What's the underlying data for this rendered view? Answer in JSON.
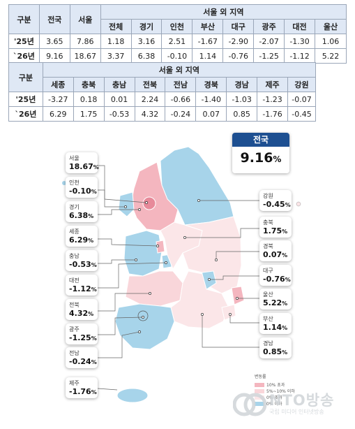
{
  "table1": {
    "header_gubun": "구분",
    "header_national": "전국",
    "header_seoul": "서울",
    "header_outside": "서울 외 지역",
    "subheaders": [
      "전체",
      "경기",
      "인천",
      "부산",
      "대구",
      "광주",
      "대전",
      "울산"
    ],
    "rows": [
      {
        "label": "'25년",
        "values": [
          "3.65",
          "7.86",
          "1.18",
          "3.16",
          "2.51",
          "-1.67",
          "-2.90",
          "-2.07",
          "-1.30",
          "1.06"
        ]
      },
      {
        "label": "`26년",
        "values": [
          "9.16",
          "18.67",
          "3.37",
          "6.38",
          "-0.10",
          "1.14",
          "-0.76",
          "-1.25",
          "-1.12",
          "5.22"
        ]
      }
    ]
  },
  "table2": {
    "header_gubun": "구분",
    "header_outside": "서울 외 지역",
    "subheaders": [
      "세종",
      "충북",
      "충남",
      "전북",
      "전남",
      "경북",
      "경남",
      "제주",
      "강원"
    ],
    "rows": [
      {
        "label": "'25년",
        "values": [
          "-3.27",
          "0.18",
          "0.01",
          "2.24",
          "-0.66",
          "-1.40",
          "-1.03",
          "-1.23",
          "-0.07"
        ]
      },
      {
        "label": "`26년",
        "values": [
          "6.29",
          "1.75",
          "-0.53",
          "4.32",
          "-0.24",
          "0.07",
          "0.85",
          "-1.76",
          "-0.45"
        ]
      }
    ]
  },
  "national": {
    "label": "전국",
    "value": "9.16",
    "unit": "%"
  },
  "chart_data": {
    "type": "table",
    "series": [
      {
        "name": "'25년",
        "values": {
          "전국": 3.65,
          "서울": 7.86,
          "전체": 1.18,
          "경기": 3.16,
          "인천": 2.51,
          "부산": -1.67,
          "대구": -2.9,
          "광주": -2.07,
          "대전": -1.3,
          "울산": 1.06,
          "세종": -3.27,
          "충북": 0.18,
          "충남": 0.01,
          "전북": 2.24,
          "전남": -0.66,
          "경북": -1.4,
          "경남": -1.03,
          "제주": -1.23,
          "강원": -0.07
        }
      },
      {
        "name": "`26년",
        "values": {
          "전국": 9.16,
          "서울": 18.67,
          "전체": 3.37,
          "경기": 6.38,
          "인천": -0.1,
          "부산": 1.14,
          "대구": -0.76,
          "광주": -1.25,
          "대전": -1.12,
          "울산": 5.22,
          "세종": 6.29,
          "충북": 1.75,
          "충남": -0.53,
          "전북": 4.32,
          "전남": -0.24,
          "경북": 0.07,
          "경남": 0.85,
          "제주": -1.76,
          "강원": -0.45
        }
      }
    ]
  },
  "map_labels": [
    {
      "name": "서울",
      "value": "18.67",
      "unit": "%"
    },
    {
      "name": "인천",
      "value": "-0.10",
      "unit": "%"
    },
    {
      "name": "경기",
      "value": "6.38",
      "unit": "%"
    },
    {
      "name": "세종",
      "value": "6.29",
      "unit": "%"
    },
    {
      "name": "충남",
      "value": "-0.53",
      "unit": "%"
    },
    {
      "name": "대전",
      "value": "-1.12",
      "unit": "%"
    },
    {
      "name": "전북",
      "value": "4.32",
      "unit": "%"
    },
    {
      "name": "광주",
      "value": "-1.25",
      "unit": "%"
    },
    {
      "name": "전남",
      "value": "-0.24",
      "unit": "%"
    },
    {
      "name": "제주",
      "value": "-1.76",
      "unit": "%"
    },
    {
      "name": "강원",
      "value": "-0.45",
      "unit": "%"
    },
    {
      "name": "충북",
      "value": "1.75",
      "unit": "%"
    },
    {
      "name": "경북",
      "value": "0.07",
      "unit": "%"
    },
    {
      "name": "대구",
      "value": "-0.76",
      "unit": "%"
    },
    {
      "name": "울산",
      "value": "5.22",
      "unit": "%"
    },
    {
      "name": "부산",
      "value": "1.14",
      "unit": "%"
    },
    {
      "name": "경남",
      "value": "0.85",
      "unit": "%"
    }
  ],
  "legend": {
    "title": "변동률",
    "items": [
      {
        "label": "10% 초과",
        "color": "#f4b6bf"
      },
      {
        "label": "5%~10% 이하",
        "color": "#f9d6da"
      },
      {
        "label": "0% 초과",
        "color": "#fbe6e8"
      },
      {
        "label": "0% 이하",
        "color": "#a7d4ea"
      }
    ]
  },
  "colors": {
    "pink_strong": "#f4b6bf",
    "pink_mid": "#f9d6da",
    "pink_light": "#fbe6e8",
    "blue": "#a7d4ea",
    "header": "#dfe8f5",
    "national_header": "#1d4f91"
  },
  "watermark": {
    "title": "NTO방송",
    "subtitle": "국립 미디어 인터넷방송"
  }
}
